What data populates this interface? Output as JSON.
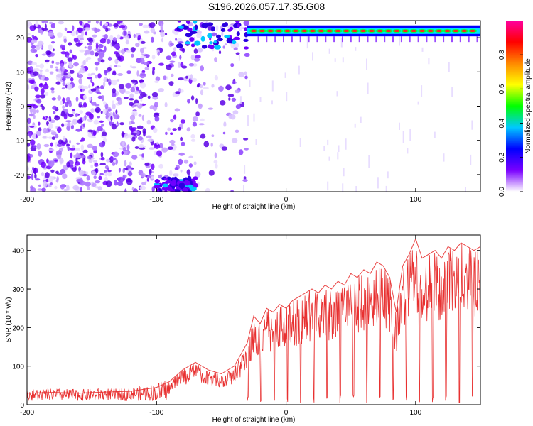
{
  "title": "S196.2026.057.17.35.G08",
  "chart_data": [
    {
      "type": "heatmap",
      "xlabel": "Height of straight line (km)",
      "ylabel": "Frequency (Hz)",
      "xlim": [
        -200,
        150
      ],
      "ylim": [
        -25,
        25
      ],
      "x_ticks": [
        -200,
        -100,
        0,
        100
      ],
      "y_ticks": [
        -20,
        -10,
        0,
        10,
        20
      ],
      "colorbar": {
        "label": "Normalized spectral amplitude",
        "range": [
          0,
          1
        ],
        "ticks": [
          "0.0",
          "0.2",
          "0.4",
          "0.6",
          "0.8"
        ],
        "colors": [
          "#ffffff",
          "#7a00ff",
          "#0000ff",
          "#00c8ff",
          "#00ff00",
          "#ffff00",
          "#ff8800",
          "#ff0000",
          "#ff00a0"
        ]
      },
      "features": {
        "noise_region_x": [
          -200,
          -30
        ],
        "signal_line_frequency_hz": 22,
        "signal_line_x": [
          -30,
          150
        ],
        "low_freq_blob_x": [
          -100,
          -70
        ],
        "low_freq_blob_hz": -23
      }
    },
    {
      "type": "line",
      "xlabel": "Height of straight line (km)",
      "ylabel": "SNR (10 * v/v)",
      "xlim": [
        -200,
        150
      ],
      "ylim": [
        0,
        440
      ],
      "x_ticks": [
        -200,
        -100,
        0,
        100
      ],
      "y_ticks": [
        0,
        100,
        200,
        300,
        400
      ],
      "color": "#e83030",
      "series": [
        {
          "x": [
            -200,
            -180,
            -160,
            -140,
            -120,
            -100,
            -90,
            -80,
            -70,
            -60,
            -50,
            -40,
            -30,
            -25,
            -20,
            -15,
            -10,
            -5,
            0,
            5,
            10,
            15,
            20,
            25,
            30,
            35,
            40,
            45,
            50,
            55,
            60,
            65,
            70,
            75,
            80,
            85,
            90,
            95,
            100,
            105,
            110,
            115,
            120,
            125,
            130,
            135,
            140,
            145,
            150
          ],
          "y": [
            30,
            32,
            30,
            33,
            35,
            45,
            60,
            90,
            110,
            90,
            80,
            100,
            160,
            230,
            210,
            250,
            240,
            260,
            250,
            270,
            280,
            290,
            300,
            290,
            310,
            300,
            320,
            310,
            340,
            330,
            350,
            340,
            370,
            360,
            330,
            240,
            360,
            390,
            430,
            380,
            390,
            400,
            380,
            410,
            400,
            420,
            410,
            400,
            410
          ]
        }
      ]
    }
  ]
}
